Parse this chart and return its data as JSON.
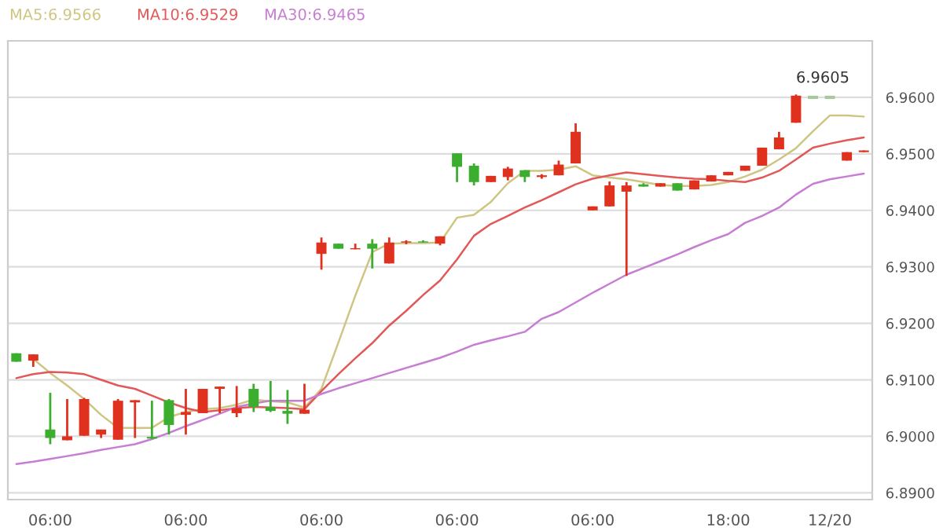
{
  "chart_data": {
    "type": "candlestick",
    "categories": [
      null,
      null,
      "06:00",
      null,
      null,
      null,
      null,
      null,
      null,
      null,
      "06:00",
      null,
      null,
      null,
      null,
      null,
      null,
      null,
      "06:00",
      null,
      null,
      null,
      null,
      null,
      null,
      null,
      "06:00",
      null,
      null,
      null,
      null,
      null,
      null,
      null,
      "06:00",
      null,
      null,
      null,
      null,
      null,
      null,
      null,
      "18:00",
      null,
      null,
      null,
      null,
      null,
      "12/20",
      null,
      null
    ],
    "ohlc": [
      [
        6.9147,
        6.9147,
        6.9132,
        6.9132
      ],
      [
        6.9134,
        6.9145,
        6.9123,
        6.9145
      ],
      [
        6.9012,
        6.9077,
        6.8986,
        6.8997
      ],
      [
        6.8993,
        6.9066,
        6.8993,
        6.9
      ],
      [
        6.9001,
        6.9068,
        6.9001,
        6.9066
      ],
      [
        6.9003,
        6.9012,
        6.8997,
        6.9012
      ],
      [
        6.8994,
        6.9066,
        6.8994,
        6.9063
      ],
      [
        6.906,
        6.9064,
        6.8997,
        6.9064
      ],
      [
        6.8999,
        6.9063,
        6.8995,
        6.8996
      ],
      [
        6.9064,
        6.9066,
        6.9003,
        6.902
      ],
      [
        6.9038,
        6.9084,
        6.9003,
        6.9043
      ],
      [
        6.9041,
        6.9084,
        6.9041,
        6.9084
      ],
      [
        6.9084,
        6.9088,
        6.9041,
        6.9088
      ],
      [
        6.9041,
        6.9089,
        6.9034,
        6.905
      ],
      [
        6.9084,
        6.9093,
        6.9043,
        6.9052
      ],
      [
        6.9052,
        6.9098,
        6.9043,
        6.9045
      ],
      [
        6.9045,
        6.9082,
        6.9022,
        6.904
      ],
      [
        6.904,
        6.9093,
        6.904,
        6.9047
      ],
      [
        6.9323,
        6.9352,
        6.9295,
        6.9343
      ],
      [
        6.9341,
        6.9341,
        6.9332,
        6.9332
      ],
      [
        6.9331,
        6.9341,
        6.9331,
        6.9333
      ],
      [
        6.9341,
        6.9349,
        6.9297,
        6.9332
      ],
      [
        6.9306,
        6.9352,
        6.9306,
        6.9343
      ],
      [
        6.9343,
        6.9347,
        6.934,
        6.9345
      ],
      [
        6.9345,
        6.9347,
        6.9343,
        6.9343
      ],
      [
        6.9341,
        6.9354,
        6.9338,
        6.9354
      ],
      [
        6.9501,
        6.9501,
        6.945,
        6.9477
      ],
      [
        6.9479,
        6.9483,
        6.9444,
        6.945
      ],
      [
        6.945,
        6.9461,
        6.945,
        6.9461
      ],
      [
        6.9459,
        6.9477,
        6.9453,
        6.9474
      ],
      [
        6.9471,
        6.9471,
        6.945,
        6.9459
      ],
      [
        6.9459,
        6.9464,
        6.9456,
        6.9462
      ],
      [
        6.9462,
        6.9488,
        6.9462,
        6.9481
      ],
      [
        6.9483,
        6.9554,
        6.9483,
        6.9539
      ],
      [
        6.94,
        6.9407,
        6.94,
        6.9407
      ],
      [
        6.9407,
        6.9451,
        6.9407,
        6.9444
      ],
      [
        6.9433,
        6.945,
        6.9284,
        6.9444
      ],
      [
        6.9446,
        6.9448,
        6.9442,
        6.9442
      ],
      [
        6.9442,
        6.9448,
        6.9442,
        6.9448
      ],
      [
        6.9448,
        6.9448,
        6.9435,
        6.9435
      ],
      [
        6.9437,
        6.9453,
        6.9437,
        6.9453
      ],
      [
        6.9451,
        6.9462,
        6.9451,
        6.9462
      ],
      [
        6.9462,
        6.9468,
        6.9462,
        6.9468
      ],
      [
        6.947,
        6.9479,
        6.947,
        6.9479
      ],
      [
        6.9479,
        6.9511,
        6.9479,
        6.9511
      ],
      [
        6.9508,
        6.9539,
        6.9508,
        6.9529
      ],
      [
        6.9555,
        6.9605,
        6.9555,
        6.9603
      ],
      [
        6.96,
        6.96,
        6.96,
        6.96
      ],
      [
        6.96,
        6.96,
        6.96,
        6.96
      ],
      [
        6.9488,
        6.9503,
        6.9488,
        6.9503
      ],
      [
        6.9503,
        6.9506,
        6.9503,
        6.9506
      ]
    ],
    "colors": [
      "#3cae2f",
      "#e0301e",
      "#3cae2f",
      "#e0301e",
      "#e0301e",
      "#e0301e",
      "#e0301e",
      "#e0301e",
      "#3cae2f",
      "#3cae2f",
      "#e0301e",
      "#e0301e",
      "#e0301e",
      "#e0301e",
      "#3cae2f",
      "#3cae2f",
      "#3cae2f",
      "#e0301e",
      "#e0301e",
      "#3cae2f",
      "#e0301e",
      "#3cae2f",
      "#e0301e",
      "#e0301e",
      "#3cae2f",
      "#e0301e",
      "#3cae2f",
      "#3cae2f",
      "#e0301e",
      "#e0301e",
      "#3cae2f",
      "#e0301e",
      "#e0301e",
      "#e0301e",
      "#e0301e",
      "#e0301e",
      "#e0301e",
      "#3cae2f",
      "#e0301e",
      "#3cae2f",
      "#e0301e",
      "#e0301e",
      "#e0301e",
      "#e0301e",
      "#e0301e",
      "#e0301e",
      "#e0301e",
      "#a8c8a0",
      "#a8c8a0",
      "#e0301e",
      "#e0301e"
    ],
    "series": [
      {
        "name": "MA5:6.9566",
        "type": "line",
        "color": "#cfc582",
        "values": [
          null,
          6.9137,
          6.9112,
          6.909,
          6.9066,
          6.9038,
          6.9015,
          6.9015,
          6.9015,
          6.9034,
          6.9043,
          6.9048,
          6.905,
          6.9056,
          6.9065,
          6.9062,
          6.906,
          6.9051,
          6.9084,
          6.9166,
          6.9249,
          6.9326,
          6.9341,
          6.9342,
          6.9342,
          6.9343,
          6.9387,
          6.9392,
          6.9415,
          6.9448,
          6.947,
          6.947,
          6.9472,
          6.9478,
          6.9462,
          6.9458,
          6.9455,
          6.945,
          6.9445,
          6.9443,
          6.9443,
          6.9445,
          6.945,
          6.946,
          6.9472,
          6.949,
          6.951,
          6.954,
          6.9568,
          6.9568,
          6.9566
        ]
      },
      {
        "name": "MA10:6.9529",
        "type": "line",
        "color": "#e25858",
        "values": [
          6.9103,
          6.911,
          6.9114,
          6.9113,
          6.911,
          6.91,
          6.909,
          6.9084,
          6.9072,
          6.906,
          6.905,
          6.9043,
          6.9046,
          6.905,
          6.9052,
          6.9051,
          6.905,
          6.9048,
          6.908,
          6.911,
          6.9138,
          6.9165,
          6.9196,
          6.9222,
          6.925,
          6.9276,
          6.9313,
          6.9355,
          6.9376,
          6.939,
          6.9405,
          6.9418,
          6.9432,
          6.9446,
          6.9456,
          6.9462,
          6.9467,
          6.9464,
          6.9461,
          6.9458,
          6.9456,
          6.9455,
          6.9452,
          6.945,
          6.9458,
          6.947,
          6.949,
          6.9511,
          6.9518,
          6.9524,
          6.9529
        ]
      },
      {
        "name": "MA30:6.9465",
        "type": "line",
        "color": "#c77dd3",
        "values": [
          6.8951,
          6.8955,
          6.896,
          6.8965,
          6.897,
          6.8976,
          6.8981,
          6.8986,
          6.8995,
          6.9006,
          6.9018,
          6.9029,
          6.904,
          6.9052,
          6.9058,
          6.9063,
          6.9063,
          6.9063,
          6.9075,
          6.9085,
          6.9094,
          6.9103,
          6.9112,
          6.9121,
          6.913,
          6.9139,
          6.915,
          6.9162,
          6.917,
          6.9177,
          6.9185,
          6.9208,
          6.922,
          6.9237,
          6.9254,
          6.927,
          6.9286,
          6.9298,
          6.931,
          6.9322,
          6.9335,
          6.9347,
          6.9358,
          6.9378,
          6.939,
          6.9405,
          6.9428,
          6.9447,
          6.9455,
          6.946,
          6.9465
        ]
      }
    ],
    "ylim": [
      6.8888,
      6.97
    ],
    "yticks": [
      {
        "value": 6.89,
        "label": "6.8900"
      },
      {
        "value": 6.9,
        "label": "6.9000"
      },
      {
        "value": 6.91,
        "label": "6.9100"
      },
      {
        "value": 6.92,
        "label": "6.9200"
      },
      {
        "value": 6.93,
        "label": "6.9300"
      },
      {
        "value": 6.94,
        "label": "6.9400"
      },
      {
        "value": 6.95,
        "label": "6.9500"
      },
      {
        "value": 6.96,
        "label": "6.9600"
      }
    ],
    "annotations": [
      {
        "text": "6.9605",
        "y": 6.9605
      }
    ],
    "grid": "y",
    "legend": "top left"
  }
}
